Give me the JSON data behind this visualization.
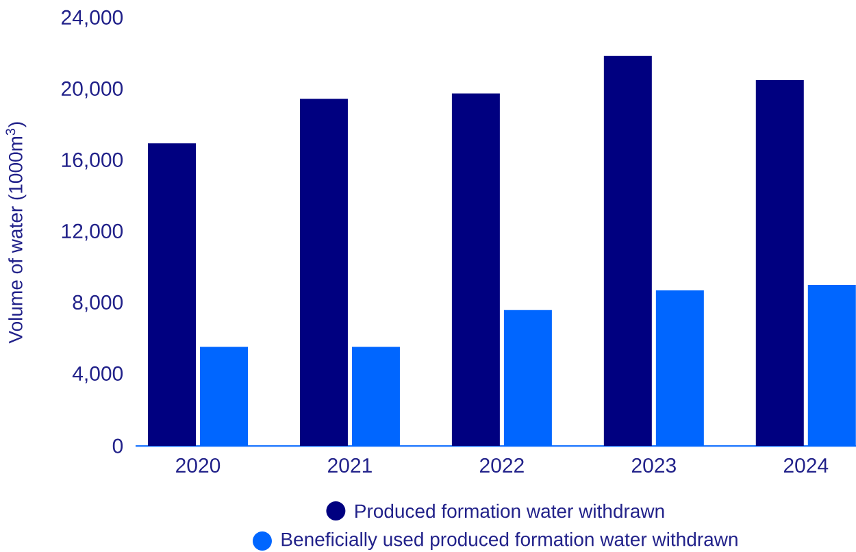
{
  "chart_data": {
    "type": "bar",
    "ylabel": "Volume of water (1000m$^{3}$)",
    "categories": [
      "2020",
      "2021",
      "2022",
      "2023",
      "2024"
    ],
    "series": [
      {
        "name": "Produced formation water withdrawn",
        "color": "#000080",
        "values": [
          17000,
          19500,
          19800,
          21900,
          20550
        ]
      },
      {
        "name": "Beneficially used produced formation water withdrawn",
        "color": "#0066ff",
        "values": [
          5570,
          5570,
          7630,
          8740,
          9050
        ]
      }
    ],
    "ylim": [
      0,
      24000
    ],
    "yticks": [
      {
        "value": 0,
        "label": "0"
      },
      {
        "value": 4000,
        "label": "4,000"
      },
      {
        "value": 8000,
        "label": "8,000"
      },
      {
        "value": 12000,
        "label": "12,000"
      },
      {
        "value": 16000,
        "label": "16,000"
      },
      {
        "value": 20000,
        "label": "20,000"
      },
      {
        "value": 24000,
        "label": "24,000"
      }
    ],
    "grid": false,
    "legend": "bottom"
  }
}
